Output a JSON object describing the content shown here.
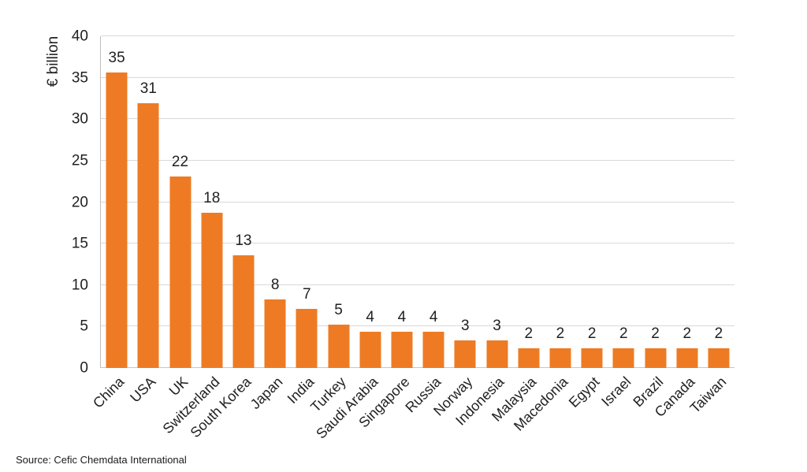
{
  "chart_data": {
    "type": "bar",
    "title": "",
    "ylabel": "€ billion",
    "xlabel": "",
    "ylim": [
      0,
      40
    ],
    "yticks": [
      0,
      5,
      10,
      15,
      20,
      25,
      30,
      35,
      40
    ],
    "grid": "horizontal",
    "legend": "none",
    "data_labels_shown": true,
    "categories": [
      "China",
      "USA",
      "UK",
      "Switzerland",
      "South Korea",
      "Japan",
      "India",
      "Turkey",
      "Saudi Arabia",
      "Singapore",
      "Russia",
      "Norway",
      "Indonesia",
      "Malaysia",
      "Macedonia",
      "Egypt",
      "Israel",
      "Brazil",
      "Canada",
      "Taiwan"
    ],
    "values": [
      35,
      31,
      22,
      18,
      13,
      8,
      7,
      5,
      4,
      4,
      4,
      3,
      3,
      2,
      2,
      2,
      2,
      2,
      2,
      2
    ],
    "bar_heights_estimated": [
      35.6,
      31.9,
      23.1,
      18.7,
      13.6,
      8.3,
      7.1,
      5.2,
      4.35,
      4.35,
      4.35,
      3.35,
      3.35,
      2.35,
      2.35,
      2.35,
      2.35,
      2.35,
      2.35,
      2.35
    ]
  },
  "colors": {
    "bar": "#EE7B23",
    "gridline": "#D9D9D9",
    "zero_line": "#C6C6C6",
    "axis_line": "#BFBFBF",
    "text": "#212121",
    "background": "#FFFFFF"
  },
  "source_note": "Source: Cefic Chemdata International"
}
